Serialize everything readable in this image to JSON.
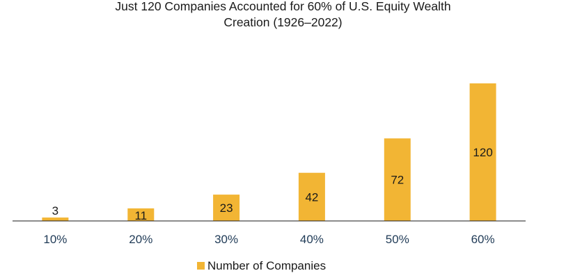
{
  "chart_data": {
    "type": "bar",
    "title_lines": [
      "Just 120 Companies Accounted for 60% of U.S. Equity Wealth",
      "Creation (1926–2022)"
    ],
    "categories": [
      "10%",
      "20%",
      "30%",
      "40%",
      "50%",
      "60%"
    ],
    "series": [
      {
        "name": "Number of Companies",
        "values": [
          3,
          11,
          23,
          42,
          72,
          120
        ],
        "color": "#F2B534"
      }
    ],
    "data_labels": [
      "3",
      "11",
      "23",
      "42",
      "72",
      "120"
    ],
    "xlabel": "",
    "ylabel": "",
    "ylim": [
      0,
      120
    ],
    "grid": false,
    "legend": "bottom-center",
    "colors": {
      "bar": "#F2B534",
      "axis": "#1a1a1a",
      "tick_label": "#1f3a56",
      "label_text": "#1a1a1a"
    }
  }
}
